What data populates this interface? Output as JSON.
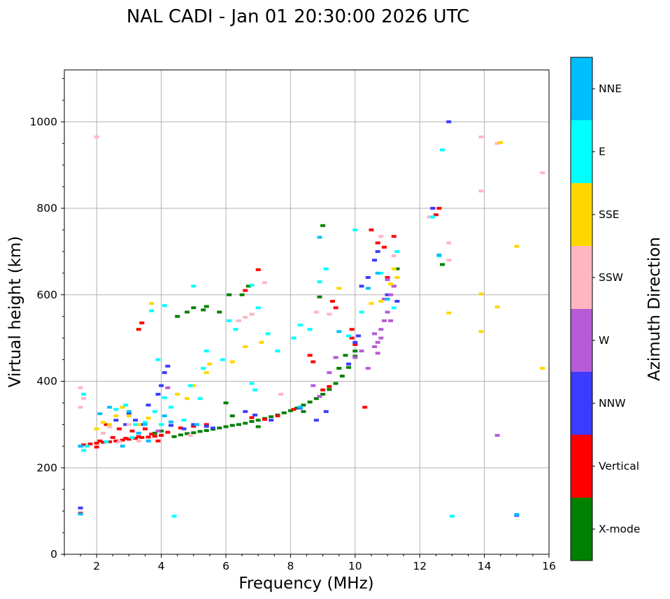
{
  "chart_data": {
    "type": "scatter",
    "title": "NAL CADI - Jan 01 20:30:00 2026 UTC",
    "xlabel": "Frequency (MHz)",
    "ylabel": "Virtual height (km)",
    "xlim": [
      1.0,
      16.0
    ],
    "ylim": [
      0,
      1120
    ],
    "xticks": [
      2,
      4,
      6,
      8,
      10,
      12,
      14,
      16
    ],
    "yticks": [
      0,
      200,
      400,
      600,
      800,
      1000
    ],
    "grid": true,
    "colorbar": {
      "title": "Azimuth Direction",
      "categories": [
        {
          "name": "X-mode",
          "color": "#008000"
        },
        {
          "name": "Vertical",
          "color": "#ff0000"
        },
        {
          "name": "NNW",
          "color": "#3c3cff"
        },
        {
          "name": "W",
          "color": "#b55cd6"
        },
        {
          "name": "SSW",
          "color": "#ffb6c1"
        },
        {
          "name": "SSE",
          "color": "#ffd700"
        },
        {
          "name": "E",
          "color": "#00ffff"
        },
        {
          "name": "NNE",
          "color": "#00bfff"
        }
      ]
    },
    "series": [
      {
        "name": "X-mode",
        "points": [
          [
            4.4,
            272
          ],
          [
            4.6,
            276
          ],
          [
            4.8,
            279
          ],
          [
            5.0,
            281
          ],
          [
            5.2,
            284
          ],
          [
            5.4,
            286
          ],
          [
            5.6,
            289
          ],
          [
            5.8,
            292
          ],
          [
            6.0,
            295
          ],
          [
            6.2,
            298
          ],
          [
            6.4,
            300
          ],
          [
            6.6,
            303
          ],
          [
            6.8,
            307
          ],
          [
            7.0,
            310
          ],
          [
            7.2,
            314
          ],
          [
            7.4,
            318
          ],
          [
            7.6,
            322
          ],
          [
            7.8,
            327
          ],
          [
            8.0,
            332
          ],
          [
            8.2,
            338
          ],
          [
            8.4,
            345
          ],
          [
            8.6,
            352
          ],
          [
            8.8,
            360
          ],
          [
            9.0,
            370
          ],
          [
            9.2,
            381
          ],
          [
            9.4,
            395
          ],
          [
            9.6,
            412
          ],
          [
            9.8,
            432
          ],
          [
            10.0,
            458
          ],
          [
            10.0,
            470
          ],
          [
            9.5,
            430
          ],
          [
            9.7,
            460
          ],
          [
            5.3,
            565
          ],
          [
            5.4,
            573
          ],
          [
            5.0,
            570
          ],
          [
            6.5,
            600
          ],
          [
            6.7,
            620
          ],
          [
            8.9,
            595
          ],
          [
            9.0,
            760
          ],
          [
            11.3,
            660
          ],
          [
            11.2,
            620
          ],
          [
            12.7,
            670
          ],
          [
            6.0,
            350
          ],
          [
            7.0,
            295
          ],
          [
            8.4,
            330
          ],
          [
            6.2,
            320
          ],
          [
            5.8,
            560
          ],
          [
            4.5,
            550
          ],
          [
            3.8,
            280
          ],
          [
            4.0,
            285
          ],
          [
            4.8,
            560
          ],
          [
            6.1,
            600
          ]
        ]
      },
      {
        "name": "Vertical",
        "points": [
          [
            1.6,
            253
          ],
          [
            1.8,
            255
          ],
          [
            2.0,
            257
          ],
          [
            2.2,
            259
          ],
          [
            2.4,
            260
          ],
          [
            2.6,
            262
          ],
          [
            2.8,
            264
          ],
          [
            3.0,
            266
          ],
          [
            3.2,
            268
          ],
          [
            3.4,
            270
          ],
          [
            3.6,
            271
          ],
          [
            3.8,
            273
          ],
          [
            4.0,
            275
          ],
          [
            2.1,
            262
          ],
          [
            2.5,
            270
          ],
          [
            2.9,
            268
          ],
          [
            3.3,
            272
          ],
          [
            3.7,
            278
          ],
          [
            4.2,
            282
          ],
          [
            4.6,
            292
          ],
          [
            5.0,
            296
          ],
          [
            5.4,
            300
          ],
          [
            2.3,
            300
          ],
          [
            2.7,
            290
          ],
          [
            3.1,
            285
          ],
          [
            3.5,
            290
          ],
          [
            1.5,
            95
          ],
          [
            3.4,
            535
          ],
          [
            3.3,
            520
          ],
          [
            6.6,
            610
          ],
          [
            7.0,
            658
          ],
          [
            9.3,
            585
          ],
          [
            9.4,
            570
          ],
          [
            9.9,
            520
          ],
          [
            9.9,
            500
          ],
          [
            10.0,
            485
          ],
          [
            10.3,
            340
          ],
          [
            10.5,
            750
          ],
          [
            10.7,
            720
          ],
          [
            10.9,
            710
          ],
          [
            11.0,
            640
          ],
          [
            11.2,
            735
          ],
          [
            12.5,
            785
          ],
          [
            12.6,
            800
          ],
          [
            8.6,
            460
          ],
          [
            8.7,
            445
          ],
          [
            9.0,
            380
          ],
          [
            9.2,
            388
          ],
          [
            7.2,
            312
          ],
          [
            7.6,
            320
          ],
          [
            6.8,
            316
          ],
          [
            8.1,
            335
          ],
          [
            3.9,
            262
          ],
          [
            2.0,
            248
          ]
        ]
      },
      {
        "name": "NNW",
        "points": [
          [
            1.5,
            250
          ],
          [
            2.6,
            310
          ],
          [
            3.0,
            325
          ],
          [
            3.4,
            300
          ],
          [
            3.6,
            345
          ],
          [
            3.9,
            370
          ],
          [
            4.0,
            390
          ],
          [
            4.1,
            420
          ],
          [
            4.2,
            435
          ],
          [
            5.0,
            300
          ],
          [
            5.4,
            296
          ],
          [
            5.6,
            292
          ],
          [
            4.3,
            298
          ],
          [
            6.6,
            330
          ],
          [
            6.9,
            322
          ],
          [
            7.4,
            310
          ],
          [
            8.3,
            338
          ],
          [
            9.4,
            455
          ],
          [
            9.8,
            440
          ],
          [
            10.0,
            490
          ],
          [
            10.1,
            505
          ],
          [
            10.2,
            620
          ],
          [
            10.4,
            640
          ],
          [
            10.6,
            680
          ],
          [
            10.7,
            700
          ],
          [
            11.0,
            600
          ],
          [
            11.3,
            585
          ],
          [
            12.4,
            800
          ],
          [
            12.9,
            1000
          ],
          [
            15.0,
            90
          ],
          [
            1.5,
            107
          ],
          [
            2.9,
            300
          ],
          [
            3.2,
            310
          ],
          [
            4.7,
            290
          ],
          [
            8.8,
            310
          ],
          [
            9.1,
            330
          ]
        ]
      },
      {
        "name": "W",
        "points": [
          [
            3.9,
            285
          ],
          [
            4.2,
            385
          ],
          [
            9.2,
            420
          ],
          [
            9.4,
            455
          ],
          [
            10.0,
            455
          ],
          [
            10.2,
            470
          ],
          [
            10.4,
            430
          ],
          [
            10.6,
            510
          ],
          [
            10.7,
            490
          ],
          [
            10.8,
            520
          ],
          [
            10.9,
            540
          ],
          [
            11.0,
            560
          ],
          [
            11.1,
            600
          ],
          [
            11.2,
            620
          ],
          [
            10.9,
            590
          ],
          [
            10.7,
            465
          ],
          [
            10.8,
            500
          ],
          [
            11.0,
            635
          ],
          [
            14.4,
            275
          ],
          [
            10.6,
            480
          ],
          [
            11.1,
            540
          ],
          [
            8.9,
            365
          ],
          [
            8.7,
            390
          ]
        ]
      },
      {
        "name": "SSW",
        "points": [
          [
            1.5,
            385
          ],
          [
            1.6,
            360
          ],
          [
            1.5,
            340
          ],
          [
            2.0,
            965
          ],
          [
            2.4,
            295
          ],
          [
            2.7,
            260
          ],
          [
            3.0,
            300
          ],
          [
            6.4,
            540
          ],
          [
            6.6,
            548
          ],
          [
            6.8,
            555
          ],
          [
            7.2,
            628
          ],
          [
            7.7,
            370
          ],
          [
            8.8,
            560
          ],
          [
            9.2,
            555
          ],
          [
            11.2,
            690
          ],
          [
            12.3,
            780
          ],
          [
            12.9,
            720
          ],
          [
            12.9,
            680
          ],
          [
            13.9,
            965
          ],
          [
            13.9,
            840
          ],
          [
            14.4,
            950
          ],
          [
            15.8,
            882
          ],
          [
            2.2,
            280
          ],
          [
            3.3,
            262
          ],
          [
            4.9,
            275
          ],
          [
            10.8,
            735
          ]
        ]
      },
      {
        "name": "SSE",
        "points": [
          [
            2.2,
            305
          ],
          [
            2.4,
            300
          ],
          [
            2.6,
            320
          ],
          [
            2.8,
            340
          ],
          [
            3.0,
            320
          ],
          [
            3.3,
            300
          ],
          [
            3.6,
            315
          ],
          [
            4.5,
            370
          ],
          [
            5.0,
            390
          ],
          [
            5.4,
            420
          ],
          [
            5.5,
            440
          ],
          [
            6.2,
            445
          ],
          [
            6.6,
            480
          ],
          [
            7.1,
            490
          ],
          [
            9.5,
            615
          ],
          [
            10.5,
            580
          ],
          [
            10.8,
            585
          ],
          [
            11.1,
            625
          ],
          [
            11.3,
            640
          ],
          [
            11.2,
            660
          ],
          [
            12.9,
            558
          ],
          [
            13.9,
            515
          ],
          [
            13.9,
            602
          ],
          [
            14.4,
            572
          ],
          [
            14.5,
            952
          ],
          [
            15.0,
            712
          ],
          [
            15.8,
            430
          ],
          [
            2.0,
            290
          ],
          [
            4.8,
            360
          ],
          [
            3.7,
            580
          ]
        ]
      },
      {
        "name": "E",
        "points": [
          [
            1.6,
            240
          ],
          [
            1.7,
            250
          ],
          [
            2.6,
            335
          ],
          [
            2.9,
            345
          ],
          [
            3.2,
            300
          ],
          [
            3.5,
            305
          ],
          [
            3.8,
            330
          ],
          [
            3.9,
            450
          ],
          [
            4.1,
            362
          ],
          [
            4.3,
            340
          ],
          [
            4.7,
            310
          ],
          [
            4.9,
            390
          ],
          [
            5.2,
            360
          ],
          [
            5.3,
            430
          ],
          [
            5.4,
            470
          ],
          [
            6.1,
            540
          ],
          [
            6.3,
            520
          ],
          [
            6.8,
            395
          ],
          [
            6.9,
            380
          ],
          [
            7.3,
            510
          ],
          [
            8.1,
            500
          ],
          [
            8.3,
            530
          ],
          [
            8.6,
            520
          ],
          [
            8.9,
            630
          ],
          [
            9.1,
            660
          ],
          [
            9.8,
            505
          ],
          [
            10.2,
            560
          ],
          [
            10.8,
            650
          ],
          [
            11.2,
            570
          ],
          [
            11.3,
            700
          ],
          [
            12.4,
            780
          ],
          [
            12.7,
            935
          ],
          [
            12.6,
            690
          ],
          [
            13.0,
            88
          ],
          [
            4.4,
            88
          ],
          [
            6.8,
            622
          ],
          [
            7.0,
            570
          ],
          [
            10.0,
            750
          ],
          [
            2.3,
            260
          ],
          [
            3.1,
            270
          ],
          [
            4.0,
            300
          ],
          [
            1.6,
            370
          ],
          [
            3.7,
            563
          ],
          [
            4.1,
            575
          ],
          [
            5.0,
            620
          ],
          [
            7.6,
            470
          ],
          [
            5.9,
            450
          ]
        ]
      },
      {
        "name": "NNE",
        "points": [
          [
            2.1,
            325
          ],
          [
            2.4,
            340
          ],
          [
            3.0,
            330
          ],
          [
            3.3,
            280
          ],
          [
            3.5,
            300
          ],
          [
            4.1,
            320
          ],
          [
            4.3,
            306
          ],
          [
            8.3,
            340
          ],
          [
            10.4,
            615
          ],
          [
            10.7,
            650
          ],
          [
            15.0,
            92
          ],
          [
            1.5,
            93
          ],
          [
            1.5,
            250
          ],
          [
            2.8,
            250
          ],
          [
            3.6,
            262
          ],
          [
            5.1,
            300
          ],
          [
            8.9,
            733
          ],
          [
            9.5,
            515
          ],
          [
            11.0,
            590
          ],
          [
            12.6,
            692
          ]
        ]
      }
    ]
  }
}
